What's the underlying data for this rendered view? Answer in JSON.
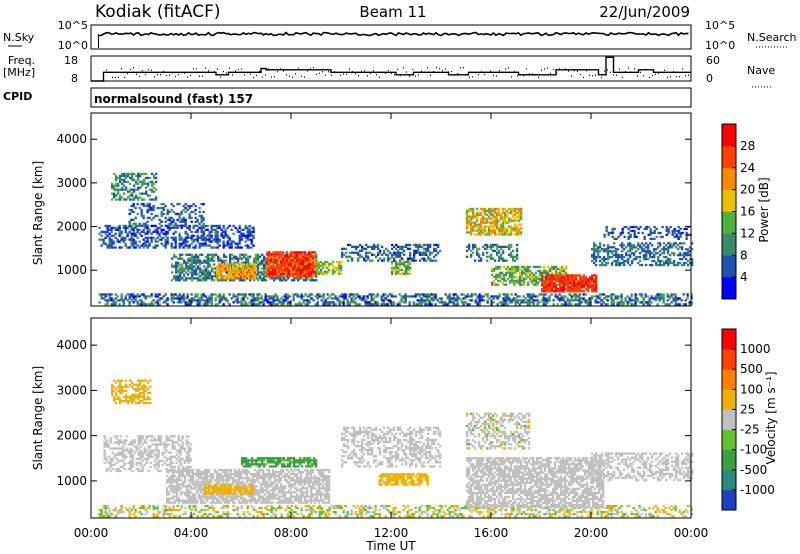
{
  "header": {
    "title": "Kodiak (fitACF)",
    "beam": "Beam 11",
    "date": "22/Jun/2009"
  },
  "top_panels": {
    "nsky_label": "N.Sky",
    "nsky_ticks": [
      "10^5",
      "10^0"
    ],
    "nsearch_label": "N.Search",
    "nsearch_ticks": [
      "10^5",
      "10^0"
    ],
    "freq_label": "Freq.",
    "freq_unit": "[MHz]",
    "freq_ticks": [
      "18",
      "8"
    ],
    "nave_label": "Nave",
    "nave_ticks": [
      "60",
      "0"
    ],
    "cpid_label": "CPID",
    "cpid_value": "normalsound (fast) 157"
  },
  "axes": {
    "xlabel": "Time UT",
    "x_ticks": [
      "00:00",
      "04:00",
      "08:00",
      "12:00",
      "16:00",
      "20:00",
      "00:00"
    ],
    "ylabel": "Slant Range [km]",
    "y_ticks": [
      "4000",
      "3000",
      "2000",
      "1000"
    ]
  },
  "colorbars": {
    "power": {
      "label": "Power [dB]",
      "ticks": [
        "28",
        "24",
        "20",
        "16",
        "12",
        "8",
        "4"
      ],
      "colors": [
        "#0000ff",
        "#2050b0",
        "#3a8a6a",
        "#50b040",
        "#e8c000",
        "#ff8800",
        "#ff4000",
        "#ff0000"
      ]
    },
    "velocity": {
      "label": "Velocity [m s⁻¹]",
      "ticks": [
        "1000",
        "500",
        "100",
        "25",
        "-25",
        "-100",
        "-500",
        "-1000"
      ],
      "colors": [
        "#2040c0",
        "#2a8a80",
        "#3aa040",
        "#60c030",
        "#c0c0c0",
        "#f0b000",
        "#ff8000",
        "#ff4000",
        "#ff0000"
      ]
    }
  },
  "chart_data": {
    "type": "heatmap",
    "title": "Kodiak (fitACF)",
    "xlabel": "Time UT",
    "ylabel": "Slant Range [km]",
    "xlim": [
      0,
      24
    ],
    "ylim": [
      180,
      4600
    ],
    "x_unit": "hours UT",
    "freq_segments": [
      {
        "start": 0.0,
        "end": 0.5,
        "mhz": 8
      },
      {
        "start": 0.5,
        "end": 5.0,
        "mhz": 11.5
      },
      {
        "start": 5.0,
        "end": 5.5,
        "mhz": 10.5
      },
      {
        "start": 5.5,
        "end": 6.8,
        "mhz": 11.5
      },
      {
        "start": 6.8,
        "end": 7.0,
        "mhz": 13
      },
      {
        "start": 7.0,
        "end": 9.6,
        "mhz": 12.5
      },
      {
        "start": 9.6,
        "end": 12.2,
        "mhz": 11.5
      },
      {
        "start": 12.2,
        "end": 12.9,
        "mhz": 10.5
      },
      {
        "start": 12.9,
        "end": 14.3,
        "mhz": 11.5
      },
      {
        "start": 14.3,
        "end": 15.1,
        "mhz": 10.5
      },
      {
        "start": 15.1,
        "end": 17.1,
        "mhz": 11.5
      },
      {
        "start": 17.1,
        "end": 18.6,
        "mhz": 10.5
      },
      {
        "start": 18.6,
        "end": 20.3,
        "mhz": 12.5
      },
      {
        "start": 20.3,
        "end": 20.6,
        "mhz": 10.5
      },
      {
        "start": 20.6,
        "end": 20.9,
        "mhz": 17.5
      },
      {
        "start": 20.9,
        "end": 21.9,
        "mhz": 11.5
      },
      {
        "start": 21.9,
        "end": 22.5,
        "mhz": 12.5
      },
      {
        "start": 22.5,
        "end": 24.0,
        "mhz": 11.5
      }
    ],
    "power_regions": [
      {
        "t0": 0.3,
        "t1": 24.0,
        "r0": 200,
        "r1": 450,
        "mean_db": 8,
        "spread": 6,
        "density": 0.55
      },
      {
        "t0": 0.3,
        "t1": 6.5,
        "r0": 1500,
        "r1": 2000,
        "mean_db": 6,
        "spread": 4,
        "density": 0.5
      },
      {
        "t0": 0.8,
        "t1": 2.6,
        "r0": 2600,
        "r1": 3200,
        "mean_db": 10,
        "spread": 5,
        "density": 0.45
      },
      {
        "t0": 1.5,
        "t1": 4.5,
        "r0": 2000,
        "r1": 2500,
        "mean_db": 7,
        "spread": 4,
        "density": 0.35
      },
      {
        "t0": 3.2,
        "t1": 9.0,
        "r0": 750,
        "r1": 1350,
        "mean_db": 9,
        "spread": 5,
        "density": 0.6
      },
      {
        "t0": 5.0,
        "t1": 6.6,
        "r0": 800,
        "r1": 1150,
        "mean_db": 20,
        "spread": 5,
        "density": 0.85
      },
      {
        "t0": 7.0,
        "t1": 9.0,
        "r0": 850,
        "r1": 1400,
        "mean_db": 26,
        "spread": 4,
        "density": 0.9
      },
      {
        "t0": 9.0,
        "t1": 10.0,
        "r0": 900,
        "r1": 1200,
        "mean_db": 16,
        "spread": 5,
        "density": 0.6
      },
      {
        "t0": 10.0,
        "t1": 14.0,
        "r0": 1200,
        "r1": 1600,
        "mean_db": 7,
        "spread": 4,
        "density": 0.45
      },
      {
        "t0": 12.0,
        "t1": 12.8,
        "r0": 900,
        "r1": 1200,
        "mean_db": 14,
        "spread": 5,
        "density": 0.7
      },
      {
        "t0": 15.0,
        "t1": 17.2,
        "r0": 1800,
        "r1": 2400,
        "mean_db": 18,
        "spread": 6,
        "density": 0.7
      },
      {
        "t0": 15.0,
        "t1": 17.0,
        "r0": 1200,
        "r1": 1600,
        "mean_db": 9,
        "spread": 5,
        "density": 0.45
      },
      {
        "t0": 16.0,
        "t1": 19.0,
        "r0": 650,
        "r1": 1100,
        "mean_db": 14,
        "spread": 5,
        "density": 0.65
      },
      {
        "t0": 18.0,
        "t1": 20.2,
        "r0": 500,
        "r1": 900,
        "mean_db": 27,
        "spread": 3,
        "density": 0.85
      },
      {
        "t0": 20.0,
        "t1": 24.0,
        "r0": 1100,
        "r1": 1600,
        "mean_db": 8,
        "spread": 4,
        "density": 0.5
      },
      {
        "t0": 20.5,
        "t1": 24.0,
        "r0": 1700,
        "r1": 2000,
        "mean_db": 6,
        "spread": 3,
        "density": 0.35
      }
    ],
    "velocity_regions": [
      {
        "t0": 0.3,
        "t1": 24.0,
        "r0": 200,
        "r1": 450,
        "mean_ms": 0,
        "spread": 80,
        "density": 0.4
      },
      {
        "t0": 0.5,
        "t1": 4.0,
        "r0": 1200,
        "r1": 2000,
        "mean_ms": 0,
        "spread": 20,
        "density": 0.45
      },
      {
        "t0": 0.8,
        "t1": 2.4,
        "r0": 2700,
        "r1": 3200,
        "mean_ms": -60,
        "spread": 20,
        "density": 0.5
      },
      {
        "t0": 3.0,
        "t1": 9.5,
        "r0": 500,
        "r1": 1250,
        "mean_ms": 0,
        "spread": 20,
        "density": 0.7
      },
      {
        "t0": 6.0,
        "t1": 9.0,
        "r0": 1300,
        "r1": 1500,
        "mean_ms": 150,
        "spread": 60,
        "density": 0.75
      },
      {
        "t0": 4.5,
        "t1": 6.5,
        "r0": 700,
        "r1": 900,
        "mean_ms": -80,
        "spread": 20,
        "density": 0.7
      },
      {
        "t0": 11.5,
        "t1": 13.5,
        "r0": 900,
        "r1": 1150,
        "mean_ms": -80,
        "spread": 20,
        "density": 0.75
      },
      {
        "t0": 10.0,
        "t1": 14.0,
        "r0": 1300,
        "r1": 2200,
        "mean_ms": 0,
        "spread": 20,
        "density": 0.45
      },
      {
        "t0": 15.0,
        "t1": 20.5,
        "r0": 400,
        "r1": 1500,
        "mean_ms": 0,
        "spread": 20,
        "density": 0.7
      },
      {
        "t0": 15.0,
        "t1": 17.5,
        "r0": 1700,
        "r1": 2500,
        "mean_ms": 0,
        "spread": 30,
        "density": 0.45
      },
      {
        "t0": 20.0,
        "t1": 24.0,
        "r0": 1000,
        "r1": 1600,
        "mean_ms": 0,
        "spread": 25,
        "density": 0.45
      }
    ]
  }
}
